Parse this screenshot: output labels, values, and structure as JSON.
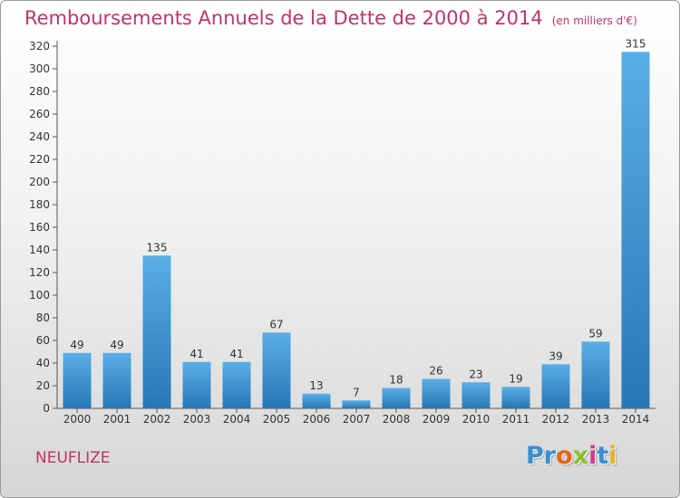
{
  "title": "Remboursements Annuels de la Dette de 2000 à 2014",
  "unit_note": "(en milliers d'€)",
  "commune": "NEUFLIZE",
  "logo": {
    "text": "Proxiti",
    "letter_colors": [
      "#3a8fd0",
      "#3a8fd0",
      "#e2661c",
      "#8bbf2a",
      "#d93a8e",
      "#3a8fd0",
      "#e6b21a"
    ]
  },
  "chart_data": {
    "type": "bar",
    "categories": [
      "2000",
      "2001",
      "2002",
      "2003",
      "2004",
      "2005",
      "2006",
      "2007",
      "2008",
      "2009",
      "2010",
      "2011",
      "2012",
      "2013",
      "2014"
    ],
    "values": [
      49,
      49,
      135,
      41,
      41,
      67,
      13,
      7,
      18,
      26,
      23,
      19,
      39,
      59,
      315
    ],
    "ylim": [
      0,
      320
    ],
    "yticks": [
      0,
      20,
      40,
      60,
      80,
      100,
      120,
      140,
      160,
      180,
      200,
      220,
      240,
      260,
      280,
      300,
      320
    ],
    "grid": false,
    "data_labels": true,
    "bar_color_top": "#5aaee6",
    "bar_color_bottom": "#2777b6"
  }
}
